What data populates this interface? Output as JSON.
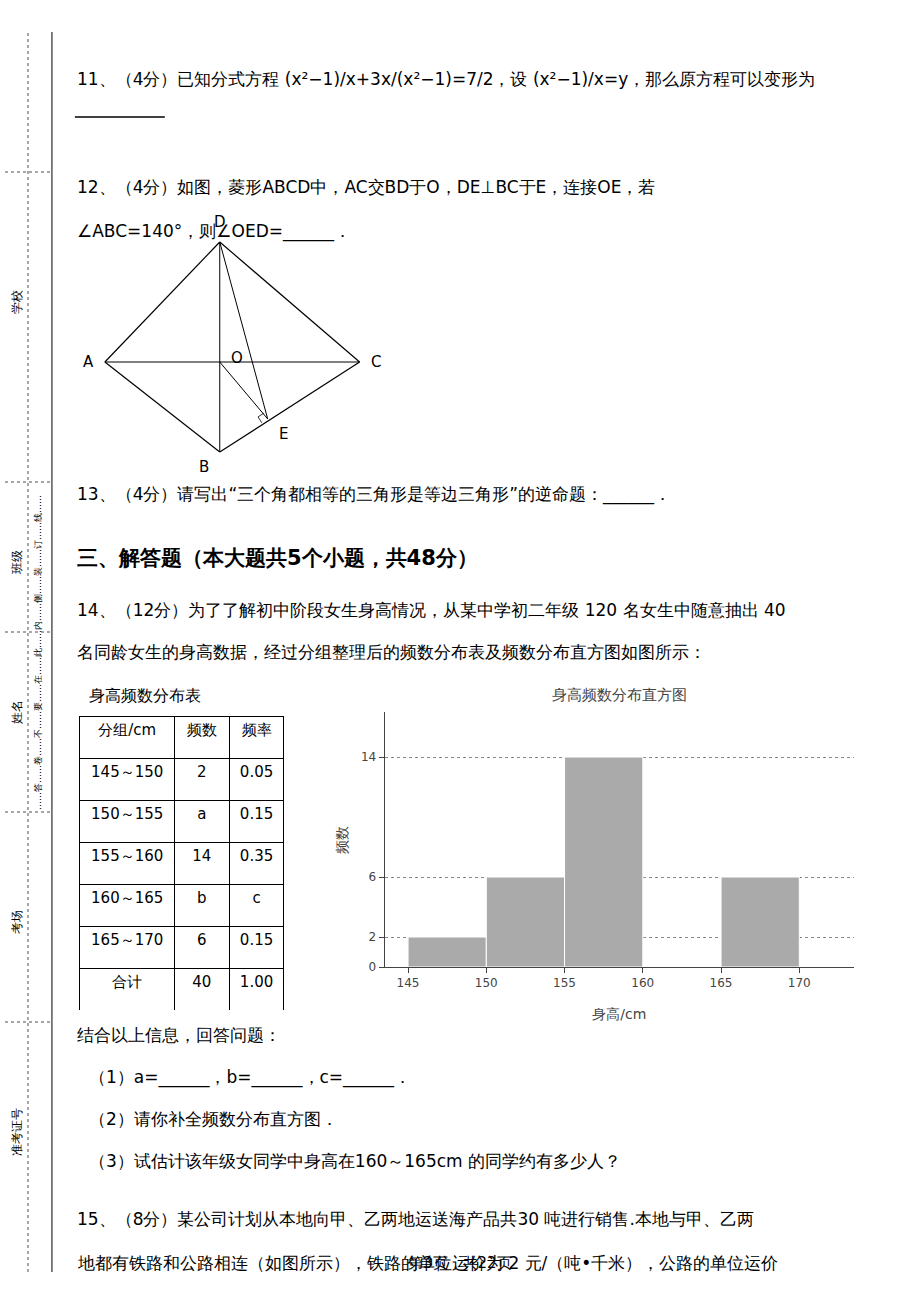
{
  "chart_data": [
    {
      "type": "bar",
      "title": "身高频数分布直方图",
      "x_label": "身高/cm",
      "y_label": "频数",
      "bins": [
        145,
        150,
        155,
        160,
        165,
        170
      ],
      "values": [
        2,
        6,
        14,
        0,
        6
      ],
      "color": "#aaaaaa",
      "xlim": [
        143.5,
        173.5
      ],
      "xticks": [
        145,
        150,
        155,
        160,
        165,
        170
      ],
      "ylim": [
        0,
        17
      ],
      "yticks": [
        0,
        2,
        6,
        14
      ],
      "grid": true
    },
    {
      "type": "table",
      "title": "身高频数分布表",
      "columns": [
        "分组/cm",
        "频数",
        "频率"
      ],
      "rows": [
        [
          "145～150",
          "2",
          "0.05"
        ],
        [
          "150～155",
          "a",
          "0.15"
        ],
        [
          "155～160",
          "14",
          "0.35"
        ],
        [
          "160～165",
          "b",
          "c"
        ],
        [
          "165～170",
          "6",
          "0.15"
        ],
        [
          "合计",
          "40",
          "1.00"
        ]
      ]
    }
  ],
  "annotations": [
    "准考证号",
    "考场",
    "姓名",
    "班级",
    "学校",
    "……答……卷……不……要……在……此……内……侧……装……订……线……",
    "11、（4分）已知分式方程 (x²−1)/x+3x/(x²−1)=7/2，设 (x²−1)/x=y，那么原方程可以变形为",
    "12、（4分）如图，菱形ABCD中，AC交BD于O，DE⊥BC于E，连接OE，若",
    "∠ABC=140°，则∠OED=______．",
    "D",
    "A",
    "C",
    "B",
    "O",
    "E",
    "13、（4分）请写出“三个角都相等的三角形是等边三角形”的逆命题：______．",
    "三、解答题（本大题共5个小题，共48分）",
    "14、（12分）为了了解初中阶段女生身高情况，从某中学初二年级 120 名女生中随意抽出 40",
    "名同龄女生的身高数据，经过分组整理后的频数分布表及频数分布直方图如图所示：",
    "结合以上信息，回答问题：",
    "（1）a=______，b=______，c=______．",
    "（2）请你补全频数分布直方图．",
    "（3）试估计该年级女同学中身高在160～165cm 的同学约有多少人？",
    "15、（8分）某公司计划从本地向甲、乙两地运送海产品共30 吨进行销售.本地与甲、乙两",
    "地都有铁路和公路相连（如图所示），铁路的单位运价为 2 元/（吨•千米），公路的单位运价",
    "第3页，共22页"
  ]
}
